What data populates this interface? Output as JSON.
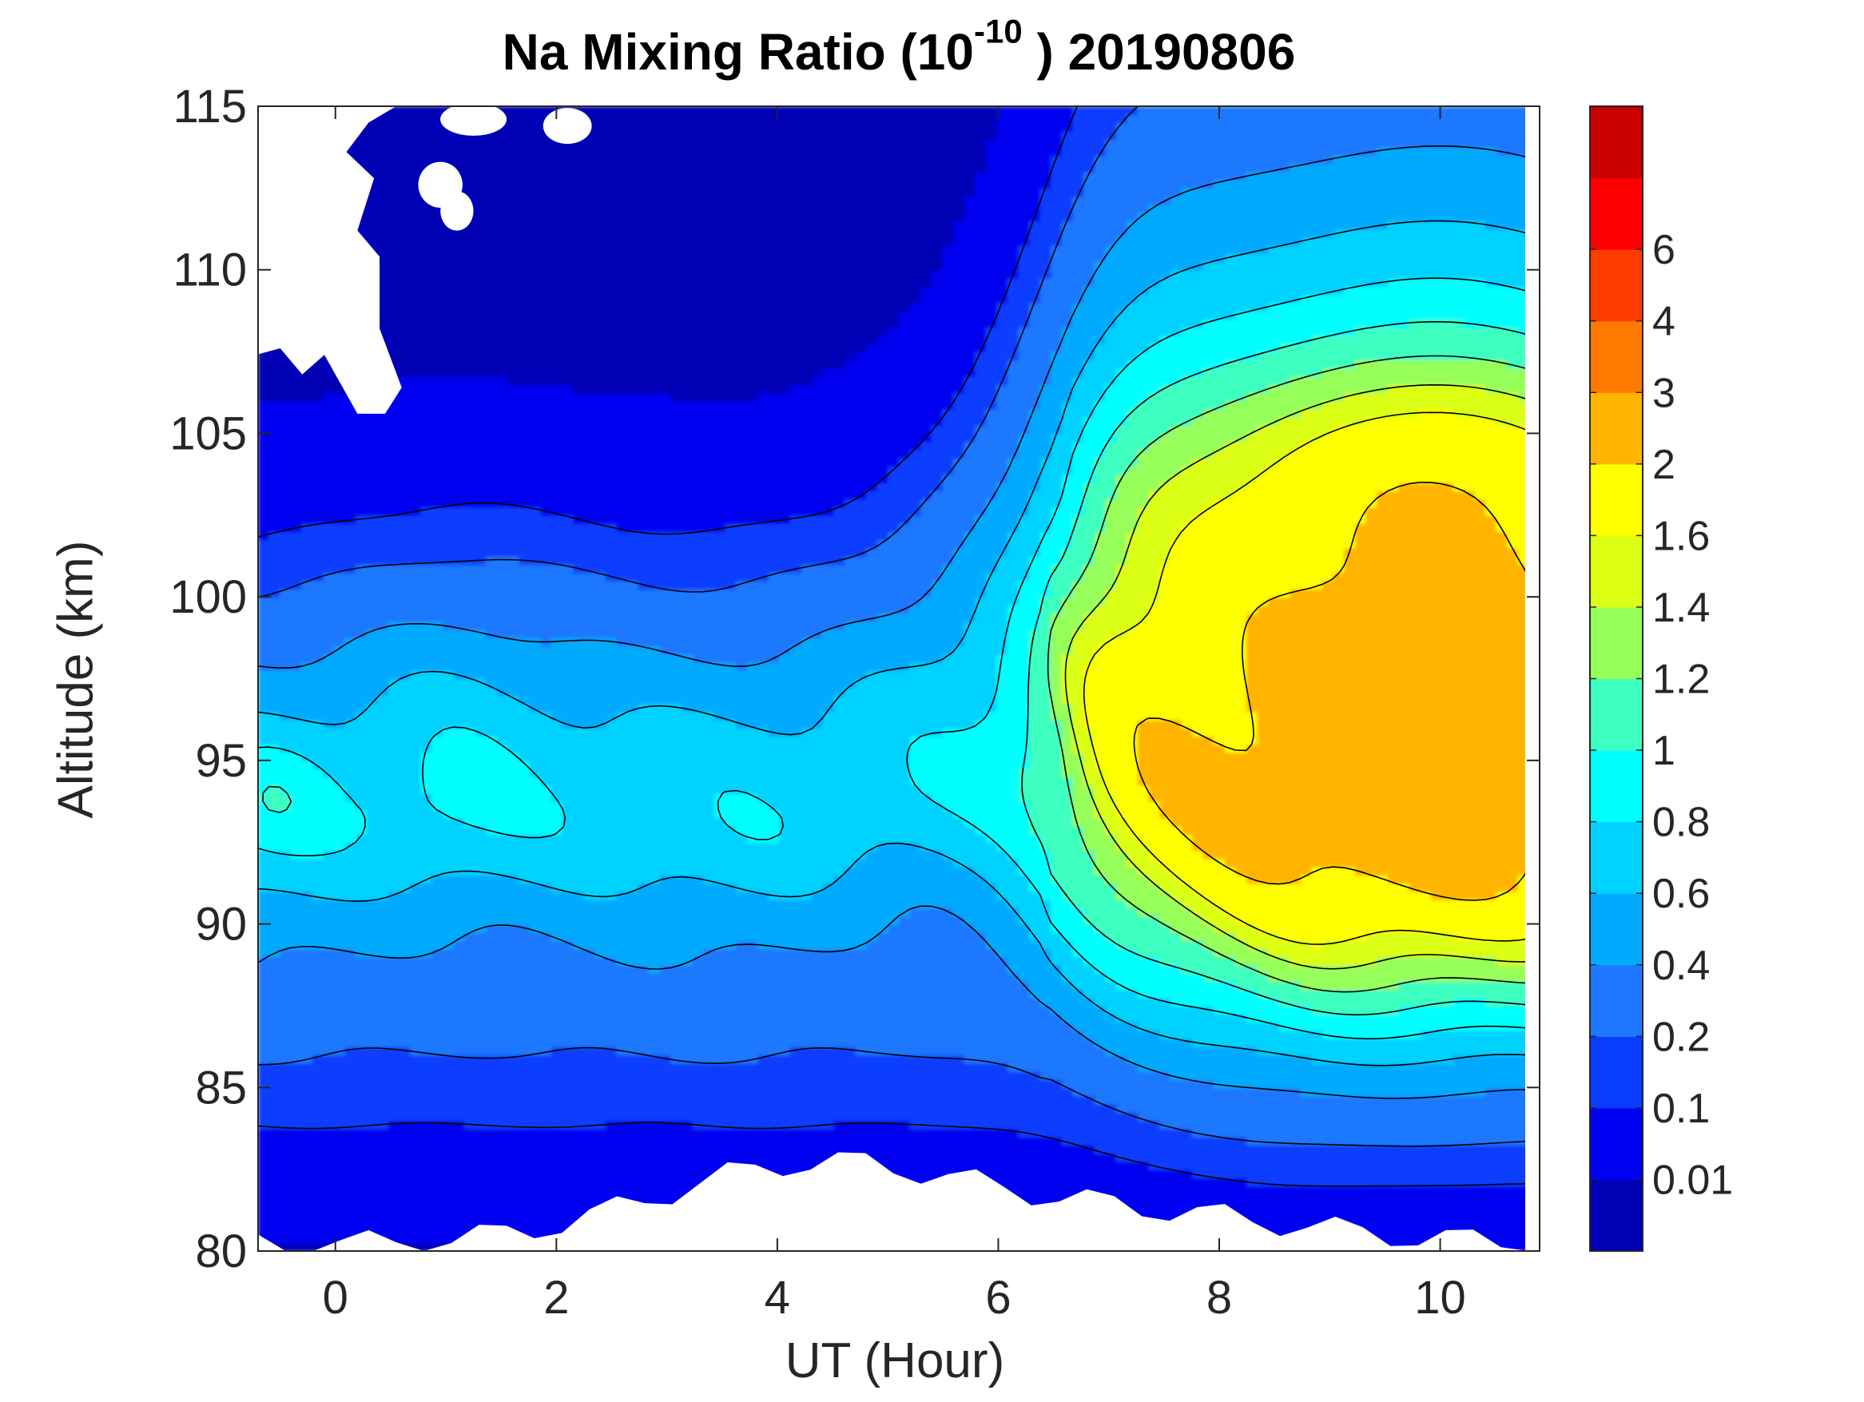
{
  "chart_data": {
    "type": "heatmap",
    "subtype": "filled-contour",
    "title_text": "Na Mixing Ratio (10",
    "title_exponent": "-10",
    "title_suffix": " ) 20190806",
    "xlabel": "UT (Hour)",
    "ylabel": "Altitude (km)",
    "xlim": [
      -0.7,
      10.9
    ],
    "ylim": [
      80,
      115
    ],
    "x_ticks": [
      0,
      2,
      4,
      6,
      8,
      10
    ],
    "x_tick_labels": [
      "0",
      "2",
      "4",
      "6",
      "8",
      "10"
    ],
    "y_ticks": [
      80,
      85,
      90,
      95,
      100,
      105,
      110,
      115
    ],
    "y_tick_labels": [
      "80",
      "85",
      "90",
      "95",
      "100",
      "105",
      "110",
      "115"
    ],
    "colorbar": {
      "tick_labels": [
        "0.01",
        "0.1",
        "0.2",
        "0.4",
        "0.6",
        "0.8",
        "1",
        "1.2",
        "1.4",
        "1.6",
        "2",
        "3",
        "4",
        "6"
      ],
      "colors": [
        "#0000B4",
        "#0000F0",
        "#0A3CFF",
        "#1E78FF",
        "#00AAFF",
        "#00D2FF",
        "#00FFFF",
        "#3CFFC0",
        "#96FF5A",
        "#DCFF14",
        "#FFFF00",
        "#FFB400",
        "#FF7800",
        "#FF3C00",
        "#FF0000",
        "#C80000"
      ]
    },
    "field": {
      "description": "Na mixing ratio (x1e-10) as a function of UT hour and altitude; no data (white) at top-left above ~106 km before 1 UT and below ~82.5 km between 3 and 6 UT",
      "layer_peak_altitude_km": 94,
      "peak_value_region": {
        "ut_hours": [
          9.2,
          10.9
        ],
        "altitude_km": [
          94,
          100
        ],
        "level": "2-3"
      }
    }
  }
}
